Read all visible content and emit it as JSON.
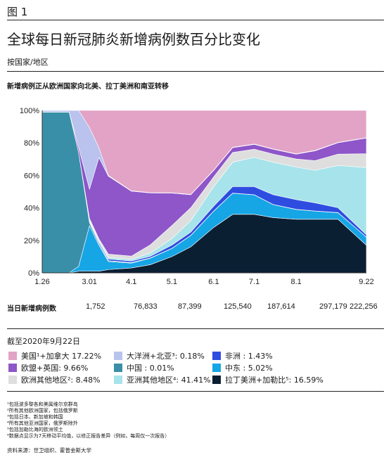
{
  "figure_label": "图 1",
  "title": "全球每日新冠肺炎新增病例数百分比变化",
  "subtitle": "按国家/地区",
  "section_title": "新增病例正从欧洲国家向北美、拉丁美洲和南亚转移",
  "totals": {
    "label": "当日新增病例数",
    "values": [
      "1,752",
      "76,833",
      "87,399",
      "125,540",
      "187,614",
      "297,179",
      "222,256"
    ]
  },
  "as_of": "截至2020年9月22日",
  "legend": [
    {
      "label": "美国¹+加拿大 17.22%",
      "color": "#e2a3c6"
    },
    {
      "label": "大洋洲+北亚³: 0.18%",
      "color": "#b9c3ed"
    },
    {
      "label": "非洲 : 1.43%",
      "color": "#2e4de0"
    },
    {
      "label": "欧盟+英国: 9.66%",
      "color": "#8e56c9"
    },
    {
      "label": "中国 : 0.01%",
      "color": "#3a8fa8"
    },
    {
      "label": "中东 : 5.02%",
      "color": "#16a5e5"
    },
    {
      "label": "欧洲其他地区²: 8.48%",
      "color": "#dedede"
    },
    {
      "label": "亚洲其他地区⁴: 41.41%",
      "color": "#a7e3ea"
    },
    {
      "label": "拉丁美洲+加勒比⁵: 16.59%",
      "color": "#0b1f33"
    }
  ],
  "notes": [
    "¹包括波多黎各和美属维尔京群岛",
    "²所有其他欧洲国家，包括俄罗斯",
    "³包括日本、新加坡和韩国",
    "⁴所有其他亚洲国家，俄罗斯除外",
    "⁵包括加勒比海的欧洲领土",
    "⁶数据点显示为7天移动平均值，以修正报告差异（例如，每周仅一次报告）"
  ],
  "source": "资料来源：世卫组织、霍普金斯大学",
  "chart_data": {
    "type": "area",
    "stacked": true,
    "x": [
      "1.26",
      "2.15",
      "2.22",
      "3.01",
      "3.08",
      "3.15",
      "4.1",
      "4.15",
      "5.1",
      "5.15",
      "6.1",
      "6.15",
      "7.1",
      "7.15",
      "8.1",
      "8.15",
      "9.1",
      "9.22"
    ],
    "xtick_labels": [
      "1.26",
      "3.01",
      "4.1",
      "5.1",
      "6.1",
      "7.1",
      "8.1",
      "9.22"
    ],
    "ylim": [
      0,
      100
    ],
    "ytick_labels": [
      "0%",
      "20%",
      "40%",
      "60%",
      "80%",
      "100%"
    ],
    "series": [
      {
        "name": "拉丁美洲+加勒比⁵",
        "values": [
          0,
          0,
          1,
          1,
          1,
          2,
          3,
          5,
          10,
          16,
          28,
          36,
          36,
          34,
          33,
          33,
          33,
          17
        ]
      },
      {
        "name": "中东",
        "values": [
          0,
          0,
          3,
          28,
          16,
          5,
          3,
          4,
          5,
          7,
          10,
          13,
          12,
          8,
          6,
          5,
          4,
          5
        ]
      },
      {
        "name": "中国",
        "values": [
          99,
          99,
          70,
          2,
          1,
          0.5,
          0.3,
          0.2,
          0.1,
          0.1,
          0.1,
          0.1,
          0.1,
          0.1,
          0.1,
          0.1,
          0.1,
          0.01
        ]
      },
      {
        "name": "非洲",
        "values": [
          0,
          0,
          0,
          0.5,
          1,
          1,
          1,
          1,
          2,
          2,
          3,
          4,
          5,
          6,
          6,
          5,
          3,
          1.43
        ]
      },
      {
        "name": "亚洲其他地区⁴",
        "values": [
          0,
          0,
          0,
          1,
          1,
          1,
          1,
          2,
          4,
          7,
          12,
          15,
          18,
          20,
          20,
          20,
          26,
          41.41
        ]
      },
      {
        "name": "欧洲其他地区²",
        "values": [
          0,
          0,
          0,
          1,
          1,
          2,
          2,
          5,
          8,
          8,
          6,
          6,
          5,
          5,
          5,
          6,
          7,
          8.48
        ]
      },
      {
        "name": "欧盟+英国",
        "values": [
          0,
          0,
          3,
          18,
          50,
          48,
          40,
          32,
          20,
          8,
          4,
          3,
          3,
          3,
          3,
          6,
          7,
          9.66
        ]
      },
      {
        "name": "大洋洲+北亚³",
        "values": [
          1,
          1,
          23,
          38,
          6,
          0.5,
          0.2,
          0.2,
          0.2,
          0.2,
          0.2,
          0.2,
          0.2,
          0.2,
          0.2,
          0.3,
          0.2,
          0.18
        ]
      },
      {
        "name": "美国¹+加拿大",
        "values": [
          0,
          0,
          0,
          10.5,
          23,
          40,
          49.5,
          50.6,
          50.7,
          51.7,
          36.7,
          22.7,
          20.7,
          23.7,
          26.7,
          24.6,
          19.7,
          17.22
        ]
      }
    ]
  }
}
